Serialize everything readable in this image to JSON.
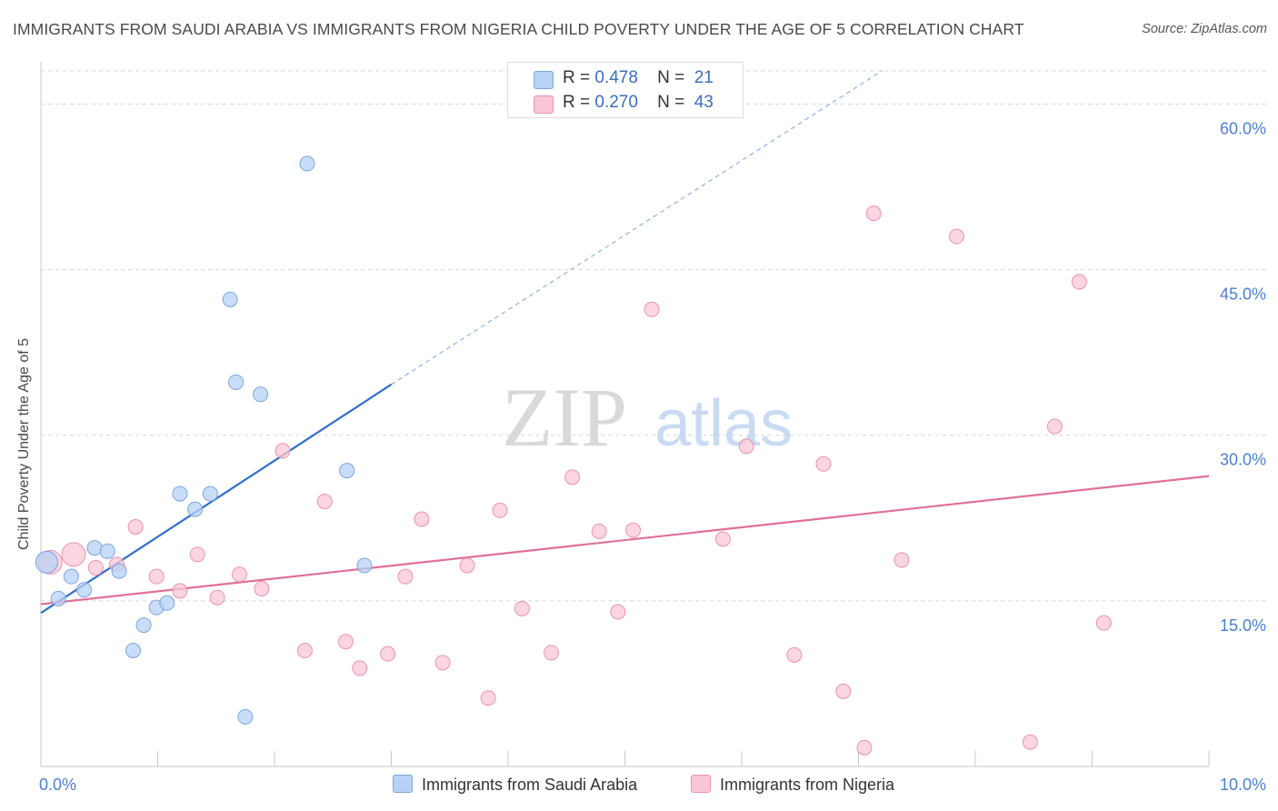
{
  "title": "IMMIGRANTS FROM SAUDI ARABIA VS IMMIGRANTS FROM NIGERIA CHILD POVERTY UNDER THE AGE OF 5 CORRELATION CHART",
  "source": "Source: ZipAtlas.com",
  "watermark": {
    "zip": "ZIP",
    "atlas": "atlas"
  },
  "legend": {
    "r_label": "R =",
    "n_label": "N =",
    "series": [
      {
        "r": "0.478",
        "n": "21"
      },
      {
        "r": "0.270",
        "n": "43"
      }
    ]
  },
  "colors": {
    "blue_fill": "#b8d2f5",
    "blue_stroke": "#7aa6e0",
    "blue_line": "#2f6fcc",
    "pink_fill": "#f9c7d5",
    "pink_stroke": "#eb93ad",
    "pink_line": "#e0709a",
    "tick_text": "#4a7fd4",
    "grid": "#d6d6d6"
  },
  "chart_data": {
    "type": "scatter",
    "title": "IMMIGRANTS FROM SAUDI ARABIA VS IMMIGRANTS FROM NIGERIA CHILD POVERTY UNDER THE AGE OF 5 CORRELATION CHART",
    "xlabel": "",
    "ylabel": "Child Poverty Under the Age of 5",
    "xlim": [
      0,
      10
    ],
    "ylim": [
      0,
      63
    ],
    "x_tick_labels": [
      "0.0%",
      "10.0%"
    ],
    "y_ticks": [
      15,
      30,
      45,
      60
    ],
    "y_tick_labels": [
      "15.0%",
      "30.0%",
      "45.0%",
      "60.0%"
    ],
    "legend_position": "top-center",
    "series": [
      {
        "name": "Immigrants from Saudi Arabia",
        "color": "blue",
        "points": [
          [
            0.05,
            18.5
          ],
          [
            0.15,
            15.2
          ],
          [
            0.26,
            17.2
          ],
          [
            0.37,
            16.0
          ],
          [
            0.46,
            19.8
          ],
          [
            0.57,
            19.5
          ],
          [
            0.67,
            17.7
          ],
          [
            0.79,
            10.5
          ],
          [
            0.88,
            12.8
          ],
          [
            0.99,
            14.4
          ],
          [
            1.08,
            14.8
          ],
          [
            1.19,
            24.7
          ],
          [
            1.32,
            23.3
          ],
          [
            1.45,
            24.7
          ],
          [
            1.62,
            42.3
          ],
          [
            1.67,
            34.8
          ],
          [
            1.75,
            4.5
          ],
          [
            1.88,
            33.7
          ],
          [
            2.28,
            54.6
          ],
          [
            2.62,
            26.8
          ],
          [
            2.77,
            18.2
          ]
        ],
        "trend": {
          "x0": 0.0,
          "y0": 13.9,
          "x1": 3.0,
          "y1": 34.6,
          "dash_x1": 7.2,
          "dash_y1": 63.0
        }
      },
      {
        "name": "Immigrants from Nigeria",
        "color": "pink",
        "points": [
          [
            0.08,
            18.5
          ],
          [
            0.28,
            19.2
          ],
          [
            0.47,
            18.0
          ],
          [
            0.65,
            18.3
          ],
          [
            0.81,
            21.7
          ],
          [
            0.99,
            17.2
          ],
          [
            1.19,
            15.9
          ],
          [
            1.34,
            19.2
          ],
          [
            1.51,
            15.3
          ],
          [
            1.7,
            17.4
          ],
          [
            1.89,
            16.1
          ],
          [
            2.07,
            28.6
          ],
          [
            2.26,
            10.5
          ],
          [
            2.43,
            24.0
          ],
          [
            2.61,
            11.3
          ],
          [
            2.73,
            8.9
          ],
          [
            2.97,
            10.2
          ],
          [
            3.12,
            17.2
          ],
          [
            3.26,
            22.4
          ],
          [
            3.44,
            9.4
          ],
          [
            3.65,
            18.2
          ],
          [
            3.83,
            6.2
          ],
          [
            3.93,
            23.2
          ],
          [
            4.12,
            14.3
          ],
          [
            4.37,
            10.3
          ],
          [
            4.55,
            26.2
          ],
          [
            4.78,
            21.3
          ],
          [
            4.94,
            14.0
          ],
          [
            5.07,
            21.4
          ],
          [
            5.23,
            41.4
          ],
          [
            5.84,
            20.6
          ],
          [
            6.04,
            29.0
          ],
          [
            6.45,
            10.1
          ],
          [
            6.7,
            27.4
          ],
          [
            6.87,
            6.8
          ],
          [
            7.05,
            1.7
          ],
          [
            7.13,
            50.1
          ],
          [
            7.37,
            18.7
          ],
          [
            7.84,
            48.0
          ],
          [
            8.47,
            2.2
          ],
          [
            8.68,
            30.8
          ],
          [
            8.89,
            43.9
          ],
          [
            9.1,
            13.0
          ]
        ],
        "trend": {
          "x0": 0.0,
          "y0": 14.7,
          "x1": 10.0,
          "y1": 26.3
        }
      }
    ]
  },
  "bottom_legend": {
    "items": [
      "Immigrants from Saudi Arabia",
      "Immigrants from Nigeria"
    ]
  }
}
